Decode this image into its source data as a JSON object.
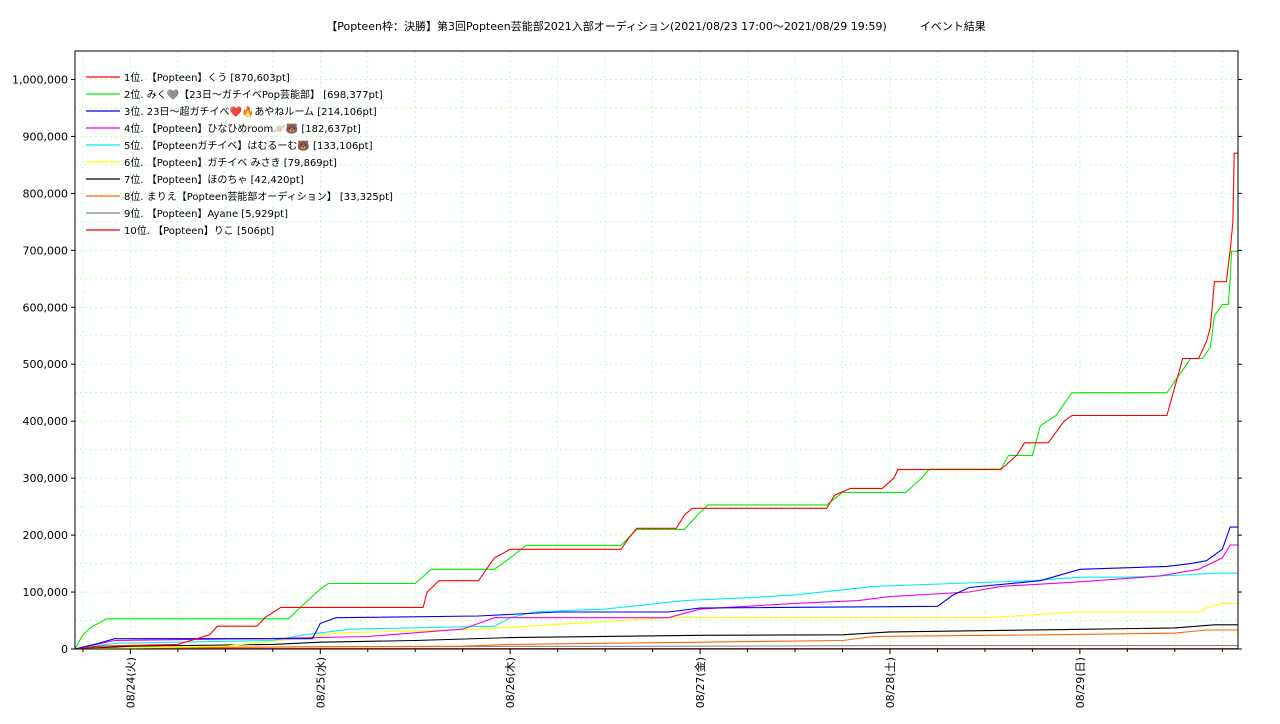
{
  "chart_data": {
    "type": "line",
    "title": "【Popteen枠：決勝】第3回Popteen芸能部2021入部オーディション(2021/08/23 17:00〜2021/08/29 19:59)　　　イベント結果",
    "xlabel": "",
    "ylabel": "",
    "x_range": [
      "2021/08/23 17:00",
      "2021/08/29 19:59"
    ],
    "x_ticks": [
      {
        "label": "08/24(火)",
        "at": "2021/08/24 00:00"
      },
      {
        "label": "08/25(水)",
        "at": "2021/08/25 00:00"
      },
      {
        "label": "08/26(木)",
        "at": "2021/08/26 00:00"
      },
      {
        "label": "08/27(金)",
        "at": "2021/08/27 00:00"
      },
      {
        "label": "08/28(土)",
        "at": "2021/08/28 00:00"
      },
      {
        "label": "08/29(日)",
        "at": "2021/08/29 00:00"
      }
    ],
    "ylim": [
      0,
      1050000
    ],
    "y_ticks": [
      {
        "v": 0,
        "label": "0"
      },
      {
        "v": 100000,
        "label": "100,000"
      },
      {
        "v": 200000,
        "label": "200,000"
      },
      {
        "v": 300000,
        "label": "300,000"
      },
      {
        "v": 400000,
        "label": "400,000"
      },
      {
        "v": 500000,
        "label": "500,000"
      },
      {
        "v": 600000,
        "label": "600,000"
      },
      {
        "v": 700000,
        "label": "700,000"
      },
      {
        "v": 800000,
        "label": "800,000"
      },
      {
        "v": 900000,
        "label": "900,000"
      },
      {
        "v": 1000000,
        "label": "1,000,000"
      }
    ],
    "grid": true,
    "legend_position": "top-left",
    "series": [
      {
        "name": "1位. 【Popteen】くう [870,603pt]",
        "color": "#ff0000",
        "points": [
          [
            "2021/08/23 17:00",
            0
          ],
          [
            "2021/08/23 20:00",
            5000
          ],
          [
            "2021/08/24 06:00",
            8000
          ],
          [
            "2021/08/24 10:00",
            25000
          ],
          [
            "2021/08/24 11:00",
            40000
          ],
          [
            "2021/08/24 16:00",
            40000
          ],
          [
            "2021/08/24 17:00",
            55000
          ],
          [
            "2021/08/24 19:00",
            73000
          ],
          [
            "2021/08/25 13:00",
            73000
          ],
          [
            "2021/08/25 13:30",
            100000
          ],
          [
            "2021/08/25 15:00",
            120000
          ],
          [
            "2021/08/25 20:00",
            120000
          ],
          [
            "2021/08/25 21:00",
            140000
          ],
          [
            "2021/08/25 22:00",
            160000
          ],
          [
            "2021/08/26 00:00",
            175000
          ],
          [
            "2021/08/26 14:00",
            175000
          ],
          [
            "2021/08/26 15:00",
            195000
          ],
          [
            "2021/08/26 16:00",
            212000
          ],
          [
            "2021/08/26 21:00",
            212000
          ],
          [
            "2021/08/26 22:00",
            235000
          ],
          [
            "2021/08/26 23:00",
            247000
          ],
          [
            "2021/08/27 16:00",
            247000
          ],
          [
            "2021/08/27 17:00",
            270000
          ],
          [
            "2021/08/27 19:00",
            282000
          ],
          [
            "2021/08/27 23:00",
            282000
          ],
          [
            "2021/08/28 00:30",
            300000
          ],
          [
            "2021/08/28 01:00",
            315000
          ],
          [
            "2021/08/28 14:00",
            315000
          ],
          [
            "2021/08/28 16:00",
            340000
          ],
          [
            "2021/08/28 17:00",
            362000
          ],
          [
            "2021/08/28 20:00",
            362000
          ],
          [
            "2021/08/28 22:00",
            400000
          ],
          [
            "2021/08/28 23:00",
            410000
          ],
          [
            "2021/08/29 11:00",
            410000
          ],
          [
            "2021/08/29 12:00",
            460000
          ],
          [
            "2021/08/29 13:00",
            510000
          ],
          [
            "2021/08/29 15:00",
            510000
          ],
          [
            "2021/08/29 16:00",
            540000
          ],
          [
            "2021/08/29 16:30",
            565000
          ],
          [
            "2021/08/29 17:00",
            645000
          ],
          [
            "2021/08/29 18:30",
            645000
          ],
          [
            "2021/08/29 19:00",
            700000
          ],
          [
            "2021/08/29 19:20",
            750000
          ],
          [
            "2021/08/29 19:30",
            870603
          ],
          [
            "2021/08/29 19:59",
            870603
          ]
        ]
      },
      {
        "name": "2位. みく🩶【23日〜ガチイベPop芸能部】 [698,377pt]",
        "color": "#00ee00",
        "points": [
          [
            "2021/08/23 17:00",
            0
          ],
          [
            "2021/08/23 18:00",
            25000
          ],
          [
            "2021/08/23 19:00",
            38000
          ],
          [
            "2021/08/23 21:00",
            53000
          ],
          [
            "2021/08/24 20:00",
            53000
          ],
          [
            "2021/08/24 22:00",
            80000
          ],
          [
            "2021/08/25 00:00",
            105000
          ],
          [
            "2021/08/25 01:00",
            115000
          ],
          [
            "2021/08/25 12:00",
            115000
          ],
          [
            "2021/08/25 14:00",
            140000
          ],
          [
            "2021/08/25 22:00",
            140000
          ],
          [
            "2021/08/26 00:00",
            160000
          ],
          [
            "2021/08/26 02:00",
            182000
          ],
          [
            "2021/08/26 14:00",
            182000
          ],
          [
            "2021/08/26 16:00",
            210000
          ],
          [
            "2021/08/26 22:00",
            210000
          ],
          [
            "2021/08/27 00:00",
            240000
          ],
          [
            "2021/08/27 01:00",
            253000
          ],
          [
            "2021/08/27 16:00",
            253000
          ],
          [
            "2021/08/27 18:00",
            275000
          ],
          [
            "2021/08/28 02:00",
            275000
          ],
          [
            "2021/08/28 04:00",
            300000
          ],
          [
            "2021/08/28 05:00",
            316000
          ],
          [
            "2021/08/28 14:00",
            316000
          ],
          [
            "2021/08/28 15:00",
            340000
          ],
          [
            "2021/08/28 18:00",
            340000
          ],
          [
            "2021/08/28 19:00",
            392000
          ],
          [
            "2021/08/28 21:00",
            410000
          ],
          [
            "2021/08/28 23:00",
            450000
          ],
          [
            "2021/08/29 11:00",
            450000
          ],
          [
            "2021/08/29 12:00",
            470000
          ],
          [
            "2021/08/29 14:00",
            510000
          ],
          [
            "2021/08/29 15:30",
            510000
          ],
          [
            "2021/08/29 16:30",
            530000
          ],
          [
            "2021/08/29 17:00",
            585000
          ],
          [
            "2021/08/29 18:00",
            605000
          ],
          [
            "2021/08/29 18:45",
            605000
          ],
          [
            "2021/08/29 19:00",
            650000
          ],
          [
            "2021/08/29 19:10",
            698377
          ],
          [
            "2021/08/29 19:59",
            698377
          ]
        ]
      },
      {
        "name": "3位. 23日〜超ガチイベ❤️🔥あやねルーム [214,106pt]",
        "color": "#0000ee",
        "points": [
          [
            "2021/08/23 17:00",
            0
          ],
          [
            "2021/08/23 20:00",
            10000
          ],
          [
            "2021/08/23 22:00",
            18000
          ],
          [
            "2021/08/24 23:00",
            18000
          ],
          [
            "2021/08/25 00:00",
            45000
          ],
          [
            "2021/08/25 02:00",
            55000
          ],
          [
            "2021/08/25 20:00",
            58000
          ],
          [
            "2021/08/26 06:00",
            65000
          ],
          [
            "2021/08/26 20:00",
            65000
          ],
          [
            "2021/08/27 00:00",
            72000
          ],
          [
            "2021/08/28 06:00",
            75000
          ],
          [
            "2021/08/28 08:00",
            95000
          ],
          [
            "2021/08/28 10:00",
            108000
          ],
          [
            "2021/08/28 19:00",
            120000
          ],
          [
            "2021/08/29 00:00",
            140000
          ],
          [
            "2021/08/29 11:00",
            145000
          ],
          [
            "2021/08/29 14:00",
            150000
          ],
          [
            "2021/08/29 16:00",
            155000
          ],
          [
            "2021/08/29 17:00",
            165000
          ],
          [
            "2021/08/29 18:00",
            175000
          ],
          [
            "2021/08/29 19:00",
            214106
          ],
          [
            "2021/08/29 19:59",
            214106
          ]
        ]
      },
      {
        "name": "4位. 【Popteen】ひなひめroom🪐🐻 [182,637pt]",
        "color": "#ee00ee",
        "points": [
          [
            "2021/08/23 17:00",
            0
          ],
          [
            "2021/08/23 22:00",
            15000
          ],
          [
            "2021/08/24 15:00",
            18000
          ],
          [
            "2021/08/24 17:00",
            18000
          ],
          [
            "2021/08/25 06:00",
            22000
          ],
          [
            "2021/08/25 18:00",
            35000
          ],
          [
            "2021/08/25 22:00",
            55000
          ],
          [
            "2021/08/26 20:00",
            55000
          ],
          [
            "2021/08/27 00:00",
            70000
          ],
          [
            "2021/08/27 12:00",
            80000
          ],
          [
            "2021/08/27 20:00",
            85000
          ],
          [
            "2021/08/28 00:00",
            92000
          ],
          [
            "2021/08/28 10:00",
            100000
          ],
          [
            "2021/08/28 14:00",
            110000
          ],
          [
            "2021/08/29 00:00",
            118000
          ],
          [
            "2021/08/29 10:00",
            128000
          ],
          [
            "2021/08/29 15:00",
            140000
          ],
          [
            "2021/08/29 18:00",
            160000
          ],
          [
            "2021/08/29 19:00",
            182637
          ],
          [
            "2021/08/29 19:59",
            182637
          ]
        ]
      },
      {
        "name": "5位. 【Popteenガチイベ】はむるーむ🐻 [133,106pt]",
        "color": "#00eeee",
        "points": [
          [
            "2021/08/23 17:00",
            0
          ],
          [
            "2021/08/23 22:00",
            10000
          ],
          [
            "2021/08/24 18:00",
            15000
          ],
          [
            "2021/08/24 22:00",
            25000
          ],
          [
            "2021/08/25 04:00",
            35000
          ],
          [
            "2021/08/25 22:00",
            40000
          ],
          [
            "2021/08/26 00:00",
            55000
          ],
          [
            "2021/08/26 03:00",
            65000
          ],
          [
            "2021/08/26 12:00",
            70000
          ],
          [
            "2021/08/26 22:00",
            85000
          ],
          [
            "2021/08/27 06:00",
            90000
          ],
          [
            "2021/08/27 12:00",
            95000
          ],
          [
            "2021/08/27 22:00",
            110000
          ],
          [
            "2021/08/28 08:00",
            115000
          ],
          [
            "2021/08/28 18:00",
            120000
          ],
          [
            "2021/08/29 00:00",
            126000
          ],
          [
            "2021/08/29 06:00",
            126000
          ],
          [
            "2021/08/29 13:00",
            130000
          ],
          [
            "2021/08/29 17:00",
            133106
          ],
          [
            "2021/08/29 19:59",
            133106
          ]
        ]
      },
      {
        "name": "6位. 【Popteen】ガチイベ みさき [79,869pt]",
        "color": "#ffff00",
        "points": [
          [
            "2021/08/23 17:00",
            0
          ],
          [
            "2021/08/24 12:00",
            5000
          ],
          [
            "2021/08/24 22:00",
            20000
          ],
          [
            "2021/08/25 02:00",
            28000
          ],
          [
            "2021/08/25 20:00",
            35000
          ],
          [
            "2021/08/26 08:00",
            45000
          ],
          [
            "2021/08/26 20:00",
            55000
          ],
          [
            "2021/08/27 20:00",
            55000
          ],
          [
            "2021/08/28 12:00",
            55000
          ],
          [
            "2021/08/28 16:00",
            58000
          ],
          [
            "2021/08/28 23:00",
            65000
          ],
          [
            "2021/08/29 15:00",
            65000
          ],
          [
            "2021/08/29 16:00",
            72000
          ],
          [
            "2021/08/29 18:00",
            79869
          ],
          [
            "2021/08/29 19:59",
            79869
          ]
        ]
      },
      {
        "name": "7位. 【Popteen】ほのちゃ [42,420pt]",
        "color": "#000000",
        "points": [
          [
            "2021/08/23 17:00",
            0
          ],
          [
            "2021/08/24 00:00",
            5000
          ],
          [
            "2021/08/24 18:00",
            8000
          ],
          [
            "2021/08/25 00:00",
            12000
          ],
          [
            "2021/08/25 12:00",
            15000
          ],
          [
            "2021/08/26 00:00",
            20000
          ],
          [
            "2021/08/27 00:00",
            24000
          ],
          [
            "2021/08/27 18:00",
            25000
          ],
          [
            "2021/08/28 00:00",
            30000
          ],
          [
            "2021/08/28 22:00",
            34000
          ],
          [
            "2021/08/29 12:00",
            37000
          ],
          [
            "2021/08/29 17:00",
            42420
          ],
          [
            "2021/08/29 19:59",
            42420
          ]
        ]
      },
      {
        "name": "8位. まりえ【Popteen芸能部オーディション】 [33,325pt]",
        "color": "#ff6600",
        "points": [
          [
            "2021/08/23 17:00",
            0
          ],
          [
            "2021/08/24 12:00",
            3000
          ],
          [
            "2021/08/25 18:00",
            5000
          ],
          [
            "2021/08/26 00:00",
            8000
          ],
          [
            "2021/08/27 00:00",
            12000
          ],
          [
            "2021/08/27 18:00",
            15000
          ],
          [
            "2021/08/27 22:00",
            22000
          ],
          [
            "2021/08/28 20:00",
            25000
          ],
          [
            "2021/08/29 12:00",
            28000
          ],
          [
            "2021/08/29 16:00",
            33325
          ],
          [
            "2021/08/29 19:59",
            33325
          ]
        ]
      },
      {
        "name": "9位. 【Popteen】Ayane [5,929pt]",
        "color": "#888888",
        "points": [
          [
            "2021/08/23 17:00",
            0
          ],
          [
            "2021/08/24 00:00",
            2000
          ],
          [
            "2021/08/25 00:00",
            4000
          ],
          [
            "2021/08/27 00:00",
            5000
          ],
          [
            "2021/08/28 00:00",
            5929
          ],
          [
            "2021/08/29 19:59",
            5929
          ]
        ]
      },
      {
        "name": "10位. 【Popteen】りこ [506pt]",
        "color": "#ee0000",
        "points": [
          [
            "2021/08/23 17:00",
            0
          ],
          [
            "2021/08/24 00:00",
            506
          ],
          [
            "2021/08/29 19:59",
            506
          ]
        ]
      }
    ]
  }
}
